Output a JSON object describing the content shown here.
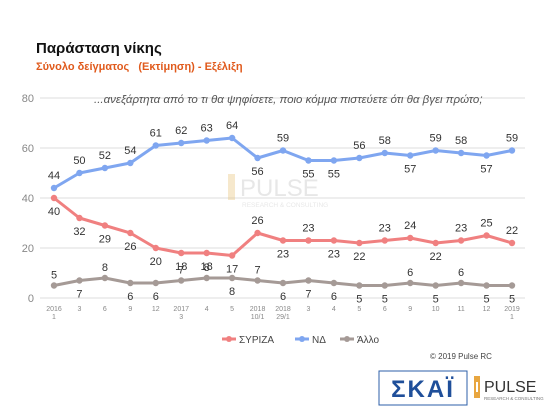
{
  "header": {
    "title": "Παράσταση νίκης",
    "subtitle": "Σύνολο δείγματος   (Εκτίμηση) - Εξέλιξη"
  },
  "footer": {
    "copyright": "© 2019 Pulse RC"
  },
  "logos": {
    "skai_text": "ΣΚΑΪ",
    "pulse_text": "PULSE",
    "pulse_sub": "RESEARCH & CONSULTING",
    "watermark_text": "PULSE",
    "watermark_sub": "RESEARCH & CONSULTING"
  },
  "colors": {
    "syriza": "#f08080",
    "nd": "#7fa6f0",
    "other": "#a59a96",
    "subtitle": "#e05a1c",
    "grid": "#dddddd",
    "axis_text": "#888888"
  },
  "chart_data": {
    "type": "line",
    "annotation": "...ανεξάρτητα από το τι θα ψηφίσετε, ποιο κόμμα πιστεύετε ότι θα βγει πρώτο;",
    "ylim": [
      0,
      80
    ],
    "yticks": [
      0,
      20,
      40,
      60,
      80
    ],
    "grid": true,
    "legend_position": "bottom",
    "x": [
      {
        "top": "2016",
        "bottom": "1"
      },
      {
        "top": "3",
        "bottom": ""
      },
      {
        "top": "6",
        "bottom": ""
      },
      {
        "top": "9",
        "bottom": ""
      },
      {
        "top": "12",
        "bottom": ""
      },
      {
        "top": "2017",
        "bottom": "3"
      },
      {
        "top": "4",
        "bottom": ""
      },
      {
        "top": "5",
        "bottom": ""
      },
      {
        "top": "2018",
        "bottom": "10/1"
      },
      {
        "top": "2018",
        "bottom": "29/1"
      },
      {
        "top": "3",
        "bottom": ""
      },
      {
        "top": "4",
        "bottom": ""
      },
      {
        "top": "5",
        "bottom": ""
      },
      {
        "top": "6",
        "bottom": ""
      },
      {
        "top": "9",
        "bottom": ""
      },
      {
        "top": "10",
        "bottom": ""
      },
      {
        "top": "11",
        "bottom": ""
      },
      {
        "top": "12",
        "bottom": ""
      },
      {
        "top": "2019",
        "bottom": "1"
      }
    ],
    "series": [
      {
        "name": "ΣΥΡΙΖΑ",
        "key": "syriza",
        "values": [
          40,
          32,
          29,
          26,
          20,
          18,
          18,
          17,
          26,
          23,
          23,
          23,
          22,
          23,
          24,
          22,
          23,
          25,
          22
        ]
      },
      {
        "name": "ΝΔ",
        "key": "nd",
        "values": [
          44,
          50,
          52,
          54,
          61,
          62,
          63,
          64,
          56,
          59,
          55,
          55,
          56,
          58,
          57,
          59,
          58,
          57,
          59
        ]
      },
      {
        "name": "Άλλο",
        "key": "other",
        "values": [
          5,
          7,
          8,
          6,
          6,
          7,
          8,
          8,
          7,
          6,
          7,
          6,
          5,
          5,
          6,
          5,
          6,
          5,
          5
        ]
      }
    ]
  }
}
